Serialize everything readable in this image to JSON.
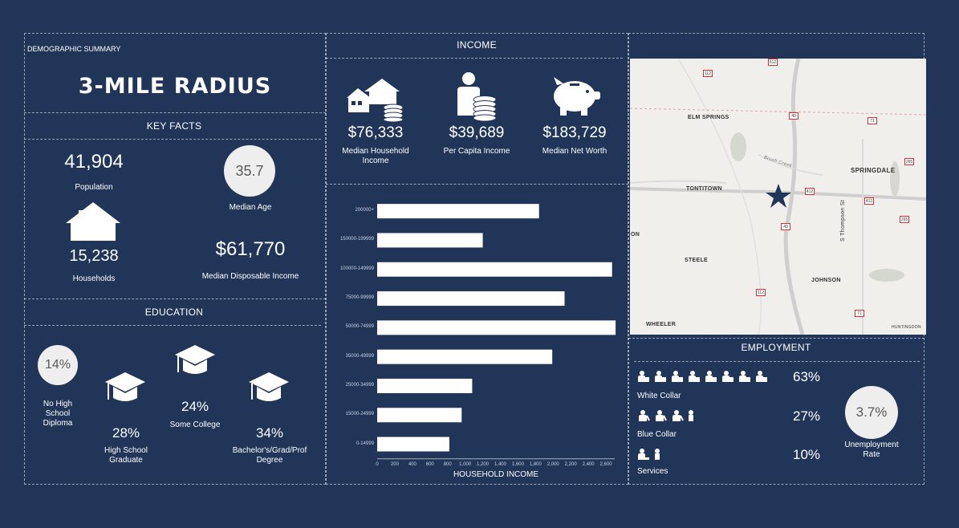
{
  "demographic": {
    "section_label": "DEMOGRAPHIC SUMMARY",
    "radius_title": "3-MILE RADIUS"
  },
  "key_facts": {
    "title": "KEY FACTS",
    "population": {
      "value": "41,904",
      "label": "Population"
    },
    "median_age": {
      "value": "35.7",
      "label": "Median Age"
    },
    "households": {
      "value": "15,238",
      "label": "Households",
      "icon": "house-icon"
    },
    "disposable_income": {
      "value": "$61,770",
      "label": "Median Disposable Income"
    }
  },
  "education": {
    "title": "EDUCATION",
    "no_diploma": {
      "value": "14%",
      "label_lines": [
        "No High",
        "School",
        "Diploma"
      ]
    },
    "high_school": {
      "value": "28%",
      "label_lines": [
        "High School",
        "Graduate"
      ]
    },
    "some_college": {
      "value": "24%",
      "label": "Some College"
    },
    "bachelors": {
      "value": "34%",
      "label_lines": [
        "Bachelor's/Grad/Prof",
        "Degree"
      ]
    }
  },
  "income": {
    "title": "INCOME",
    "median_household": {
      "value": "$76,333",
      "label_lines": [
        "Median Household",
        "Income"
      ]
    },
    "per_capita": {
      "value": "$39,689",
      "label": "Per Capita Income"
    },
    "net_worth": {
      "value": "$183,729",
      "label": "Median Net Worth"
    }
  },
  "chart_data": {
    "type": "bar",
    "orientation": "horizontal",
    "categories": [
      "200000+",
      "150000-199999",
      "100000-149999",
      "75000-99999",
      "50000-74999",
      "35000-49999",
      "25000-34999",
      "15000-24999",
      "0-14999"
    ],
    "values": [
      1840,
      1200,
      2670,
      2130,
      2710,
      1990,
      1080,
      960,
      820
    ],
    "xlabel": "HOUSEHOLD INCOME",
    "xlim": [
      0,
      2700
    ],
    "xticks": [
      "0",
      "200",
      "400",
      "600",
      "800",
      "1,000",
      "1,200",
      "1,400",
      "1,600",
      "1,800",
      "2,000",
      "2,200",
      "2,400",
      "2,600"
    ],
    "bar_color": "#ffffff"
  },
  "map": {
    "labels": [
      "ELM SPRINGS",
      "SPRINGDALE",
      "TONTITOWN",
      "STEELE",
      "JOHNSON",
      "WHEELER",
      "HUNTINGDON",
      "ON",
      "S Thompson St",
      "Brush Creek"
    ],
    "routes": [
      "612",
      "112",
      "49",
      "71",
      "265",
      "412",
      "412",
      "265",
      "49",
      "112",
      "71"
    ],
    "marker": "star-marker-icon"
  },
  "employment": {
    "title": "EMPLOYMENT",
    "white_collar": {
      "value": "63%",
      "label": "White Collar"
    },
    "blue_collar": {
      "value": "27%",
      "label": "Blue Collar"
    },
    "services": {
      "value": "10%",
      "label": "Services"
    },
    "unemployment": {
      "value": "3.7%",
      "label_lines": [
        "Unemployment",
        "Rate"
      ]
    }
  },
  "colors": {
    "background": "#213559",
    "accent": "#ffffff",
    "circle": "#eeeeee"
  }
}
